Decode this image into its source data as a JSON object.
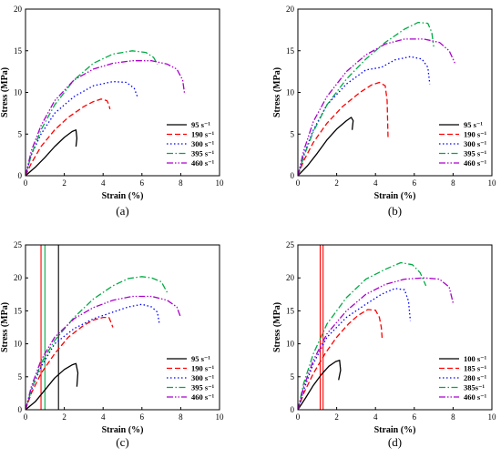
{
  "chart_data": [
    {
      "panel_label": "(a)",
      "type": "line",
      "xlabel": "Strain (%)",
      "ylabel": "Stress (MPa)",
      "xlim": [
        0,
        10
      ],
      "ylim": [
        0,
        20
      ],
      "xticks": [
        0,
        2,
        4,
        6,
        8,
        10
      ],
      "yticks": [
        0,
        5,
        10,
        15,
        20
      ],
      "legend_position": "bottom-right",
      "series": [
        {
          "name": "95 s⁻¹",
          "color": "#000000",
          "dash": "solid",
          "x": [
            0.0,
            0.5,
            1.0,
            1.5,
            2.0,
            2.4,
            2.6,
            2.65,
            2.6
          ],
          "y": [
            0.0,
            1.0,
            2.2,
            3.5,
            4.6,
            5.3,
            5.5,
            4.5,
            3.5
          ]
        },
        {
          "name": "190 s⁻¹",
          "color": "#ff0000",
          "dash": "dashed",
          "x": [
            0.0,
            0.3,
            0.8,
            1.5,
            2.2,
            3.0,
            3.5,
            3.9,
            4.2,
            4.3,
            4.35
          ],
          "y": [
            0.0,
            1.5,
            3.5,
            5.5,
            7.0,
            8.3,
            8.9,
            9.2,
            9.0,
            8.5,
            8.0
          ]
        },
        {
          "name": "300 s⁻¹",
          "color": "#0000ff",
          "dash": "dotted",
          "x": [
            0.0,
            0.3,
            0.8,
            1.5,
            2.5,
            3.5,
            4.5,
            5.2,
            5.6,
            5.8
          ],
          "y": [
            0.0,
            2.5,
            5.0,
            7.5,
            9.5,
            10.8,
            11.3,
            11.2,
            10.5,
            9.3
          ]
        },
        {
          "name": "395 s⁻¹",
          "color": "#00aa44",
          "dash": "dashdot",
          "x": [
            0.0,
            0.3,
            0.8,
            1.5,
            2.5,
            3.5,
            4.5,
            5.5,
            6.2,
            6.6,
            6.8
          ],
          "y": [
            0.0,
            2.5,
            5.5,
            8.5,
            11.5,
            13.5,
            14.6,
            15.0,
            14.8,
            14.2,
            13.4
          ]
        },
        {
          "name": "460 s⁻¹",
          "color": "#aa00cc",
          "dash": "dashdotdot",
          "x": [
            0.0,
            0.3,
            0.8,
            1.5,
            2.5,
            3.5,
            4.5,
            5.5,
            6.5,
            7.3,
            7.8,
            8.1,
            8.2
          ],
          "y": [
            0.0,
            3.0,
            6.0,
            9.0,
            11.5,
            12.8,
            13.5,
            13.8,
            13.8,
            13.4,
            12.8,
            11.5,
            9.8
          ]
        }
      ]
    },
    {
      "panel_label": "(b)",
      "type": "line",
      "xlabel": "Strain (%)",
      "ylabel": "Stress (MPa)",
      "xlim": [
        0,
        10
      ],
      "ylim": [
        0,
        20
      ],
      "xticks": [
        0,
        2,
        4,
        6,
        8,
        10
      ],
      "yticks": [
        0,
        5,
        10,
        15,
        20
      ],
      "legend_position": "bottom-right",
      "series": [
        {
          "name": "95 s⁻¹",
          "color": "#000000",
          "dash": "solid",
          "x": [
            0.0,
            0.5,
            1.0,
            1.5,
            2.0,
            2.5,
            2.75,
            2.85,
            2.8
          ],
          "y": [
            0.0,
            1.2,
            2.7,
            4.3,
            5.6,
            6.6,
            7.0,
            6.6,
            5.5
          ]
        },
        {
          "name": "190 s⁻¹",
          "color": "#ff0000",
          "dash": "dashed",
          "x": [
            0.0,
            0.3,
            0.8,
            1.5,
            2.3,
            3.2,
            3.8,
            4.2,
            4.5,
            4.6,
            4.65
          ],
          "y": [
            0.0,
            1.8,
            4.0,
            6.3,
            8.3,
            10.0,
            10.9,
            11.2,
            10.8,
            9.0,
            4.5
          ]
        },
        {
          "name": "300 s⁻¹",
          "color": "#0000ff",
          "dash": "dotted",
          "x": [
            0.0,
            0.3,
            0.8,
            1.5,
            2.5,
            3.5,
            4.3,
            5.0,
            5.8,
            6.4,
            6.7,
            6.8
          ],
          "y": [
            0.0,
            2.5,
            5.5,
            8.5,
            11.0,
            12.7,
            13.0,
            13.9,
            14.3,
            14.0,
            13.0,
            11.0
          ]
        },
        {
          "name": "395 s⁻¹",
          "color": "#00aa44",
          "dash": "dashdot",
          "x": [
            0.0,
            0.3,
            0.8,
            1.5,
            2.5,
            3.5,
            4.5,
            5.5,
            6.2,
            6.7,
            6.9,
            7.0
          ],
          "y": [
            0.0,
            2.3,
            5.3,
            8.5,
            11.6,
            14.0,
            16.0,
            17.6,
            18.4,
            18.3,
            17.2,
            15.5
          ]
        },
        {
          "name": "460 s⁻¹",
          "color": "#aa00cc",
          "dash": "dashdotdot",
          "x": [
            0.0,
            0.3,
            0.8,
            1.5,
            2.5,
            3.5,
            4.5,
            5.5,
            6.5,
            7.3,
            7.8,
            8.1
          ],
          "y": [
            0.0,
            3.0,
            6.5,
            9.5,
            12.5,
            14.5,
            15.8,
            16.4,
            16.4,
            16.0,
            15.0,
            13.5
          ]
        }
      ]
    },
    {
      "panel_label": "(c)",
      "type": "line",
      "xlabel": "Strain (%)",
      "ylabel": "Stress (MPa)",
      "xlim": [
        0,
        10
      ],
      "ylim": [
        0,
        25
      ],
      "xticks": [
        0,
        2,
        4,
        6,
        8,
        10
      ],
      "yticks": [
        0,
        5,
        10,
        15,
        20,
        25
      ],
      "legend_position": "bottom-right",
      "vertical_lines": [
        {
          "x": 0.8,
          "color": "#ff0000"
        },
        {
          "x": 1.0,
          "color": "#00aa44"
        },
        {
          "x": 1.7,
          "color": "#000000"
        }
      ],
      "series": [
        {
          "name": "95 s⁻¹",
          "color": "#000000",
          "dash": "solid",
          "x": [
            0.0,
            0.5,
            1.0,
            1.5,
            2.0,
            2.4,
            2.6,
            2.7,
            2.65
          ],
          "y": [
            0.0,
            1.2,
            3.0,
            4.8,
            6.1,
            6.8,
            7.0,
            5.6,
            3.5
          ]
        },
        {
          "name": "190 s⁻¹",
          "color": "#ff0000",
          "dash": "dashed",
          "x": [
            0.0,
            0.3,
            0.8,
            1.5,
            2.2,
            3.0,
            3.5,
            4.0,
            4.3,
            4.4,
            4.5
          ],
          "y": [
            0.0,
            2.5,
            5.5,
            8.5,
            11.0,
            12.8,
            13.6,
            14.0,
            14.0,
            13.3,
            12.5
          ]
        },
        {
          "name": "300 s⁻¹",
          "color": "#0000ff",
          "dash": "dotted",
          "x": [
            0.0,
            0.3,
            0.8,
            1.5,
            2.5,
            3.5,
            4.5,
            5.3,
            6.0,
            6.5,
            6.8,
            6.9
          ],
          "y": [
            0.0,
            3.0,
            6.5,
            10.0,
            12.3,
            13.8,
            14.8,
            15.6,
            16.0,
            15.6,
            14.8,
            13.0
          ]
        },
        {
          "name": "395 s⁻¹",
          "color": "#00aa44",
          "dash": "dashdot",
          "x": [
            0.0,
            0.3,
            0.8,
            1.5,
            2.5,
            3.5,
            4.5,
            5.3,
            6.0,
            6.5,
            7.0,
            7.3
          ],
          "y": [
            0.0,
            3.0,
            7.0,
            10.5,
            14.0,
            16.8,
            18.8,
            19.9,
            20.2,
            20.0,
            19.4,
            17.8
          ]
        },
        {
          "name": "460 s⁻¹",
          "color": "#aa00cc",
          "dash": "dashdotdot",
          "x": [
            0.0,
            0.3,
            0.8,
            1.5,
            2.5,
            3.5,
            4.5,
            5.5,
            6.5,
            7.3,
            7.8,
            8.0
          ],
          "y": [
            0.0,
            3.5,
            7.5,
            11.0,
            13.8,
            15.5,
            16.6,
            17.2,
            17.2,
            16.6,
            15.6,
            14.0
          ]
        }
      ]
    },
    {
      "panel_label": "(d)",
      "type": "line",
      "xlabel": "Strain (%)",
      "ylabel": "Stress (MPa)",
      "xlim": [
        0,
        10
      ],
      "ylim": [
        0,
        25
      ],
      "xticks": [
        0,
        2,
        4,
        6,
        8,
        10
      ],
      "yticks": [
        0,
        5,
        10,
        15,
        20,
        25
      ],
      "legend_position": "bottom-right",
      "vertical_lines": [
        {
          "x": 1.15,
          "color": "#ff0000"
        },
        {
          "x": 1.3,
          "color": "#ff0000"
        }
      ],
      "series": [
        {
          "name": "100 s⁻¹",
          "color": "#000000",
          "dash": "solid",
          "x": [
            0.0,
            0.4,
            0.8,
            1.2,
            1.6,
            1.95,
            2.15,
            2.2,
            2.1
          ],
          "y": [
            0.0,
            1.8,
            3.7,
            5.3,
            6.6,
            7.3,
            7.5,
            6.0,
            4.5
          ]
        },
        {
          "name": "185 s⁻¹",
          "color": "#ff0000",
          "dash": "dashed",
          "x": [
            0.0,
            0.3,
            0.8,
            1.4,
            2.0,
            2.6,
            3.1,
            3.6,
            4.0,
            4.2,
            4.3,
            4.35
          ],
          "y": [
            0.0,
            2.5,
            5.5,
            8.5,
            11.0,
            13.0,
            14.3,
            15.2,
            15.1,
            14.0,
            12.5,
            10.5
          ]
        },
        {
          "name": "280 s⁻¹",
          "color": "#0000ff",
          "dash": "dotted",
          "x": [
            0.0,
            0.3,
            0.8,
            1.5,
            2.5,
            3.5,
            4.3,
            5.0,
            5.5,
            5.7,
            5.8
          ],
          "y": [
            0.0,
            3.0,
            7.0,
            11.0,
            14.0,
            16.0,
            17.5,
            18.4,
            18.2,
            16.5,
            13.5
          ]
        },
        {
          "name": "385s⁻¹",
          "color": "#00aa44",
          "dash": "dashdot",
          "x": [
            0.0,
            0.3,
            0.8,
            1.5,
            2.5,
            3.5,
            4.5,
            5.3,
            5.9,
            6.3,
            6.6
          ],
          "y": [
            0.0,
            4.0,
            8.5,
            13.0,
            17.0,
            19.8,
            21.3,
            22.3,
            22.0,
            20.8,
            18.8
          ]
        },
        {
          "name": "460 s⁻¹",
          "color": "#aa00cc",
          "dash": "dashdotdot",
          "x": [
            0.0,
            0.3,
            0.8,
            1.5,
            2.5,
            3.5,
            4.5,
            5.5,
            6.5,
            7.3,
            7.8,
            8.0
          ],
          "y": [
            0.0,
            3.5,
            7.5,
            11.5,
            15.0,
            17.5,
            19.0,
            19.8,
            20.0,
            19.8,
            18.6,
            16.2
          ]
        }
      ]
    }
  ]
}
